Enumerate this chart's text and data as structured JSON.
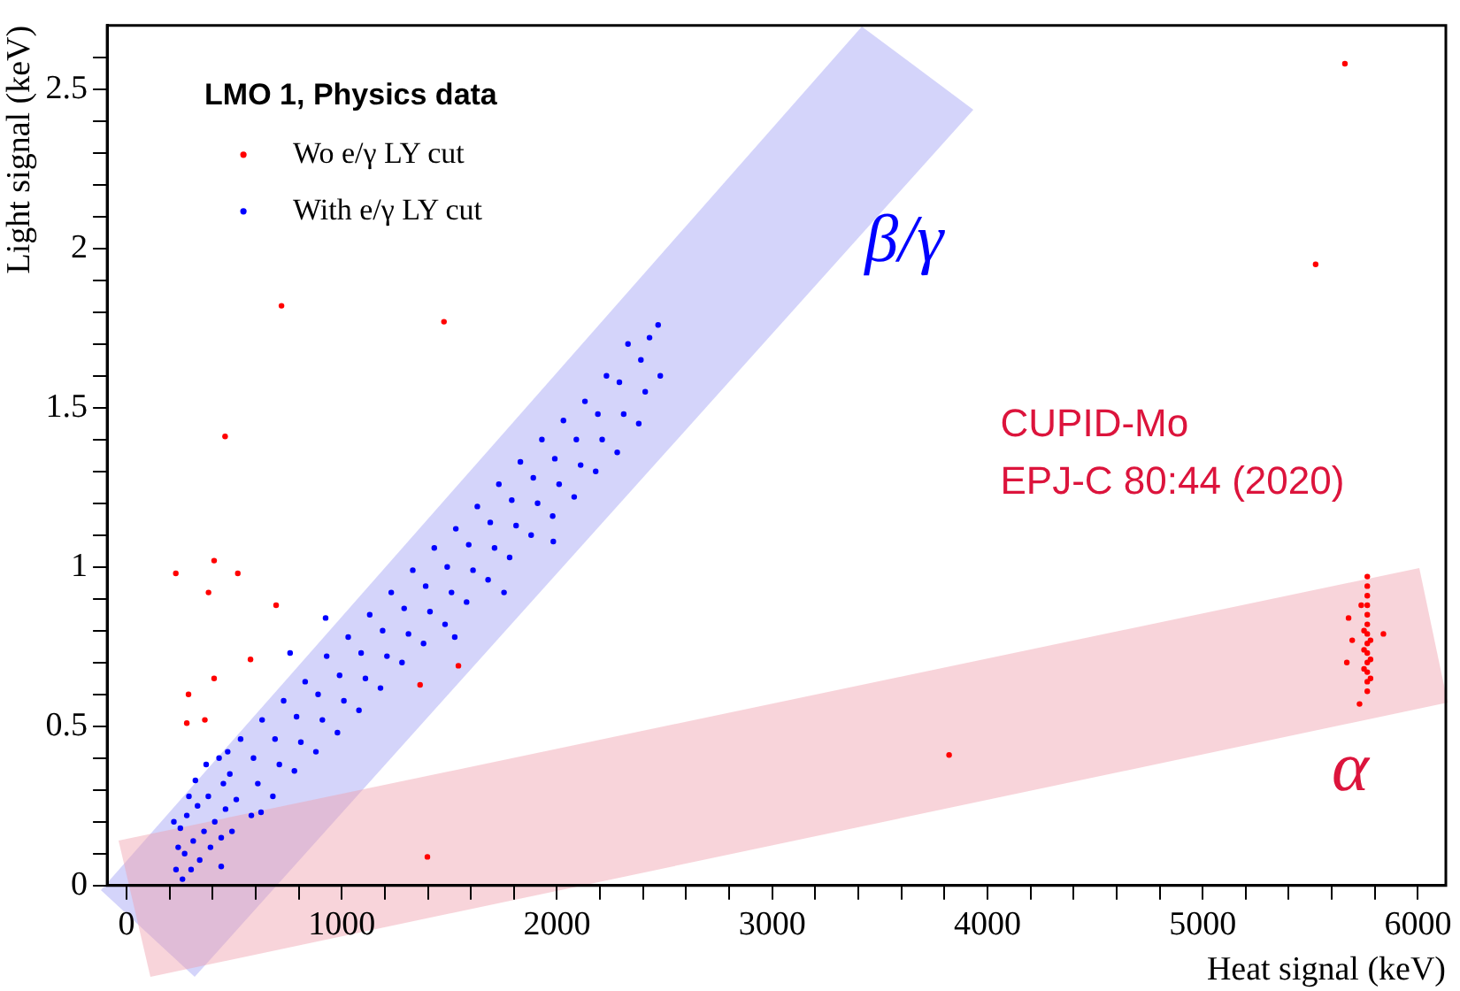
{
  "chart_data": {
    "type": "scatter",
    "xlabel": "Heat signal (keV)",
    "ylabel": "Light signal (keV)",
    "legend_title": "LMO 1, Physics data",
    "legend": "top left",
    "marker": "circle",
    "grid": false,
    "xlim": [
      -90,
      6130
    ],
    "ylim": [
      0,
      2.7
    ],
    "xticks": [
      0,
      {
        "value": 200,
        "label": null
      },
      {
        "value": 400,
        "label": null
      },
      {
        "value": 600,
        "label": null
      },
      {
        "value": 800,
        "label": null
      },
      1000,
      {
        "value": 1200,
        "label": null
      },
      {
        "value": 1400,
        "label": null
      },
      {
        "value": 1600,
        "label": null
      },
      {
        "value": 1800,
        "label": null
      },
      2000,
      {
        "value": 2200,
        "label": null
      },
      {
        "value": 2400,
        "label": null
      },
      {
        "value": 2600,
        "label": null
      },
      {
        "value": 2800,
        "label": null
      },
      3000,
      {
        "value": 3200,
        "label": null
      },
      {
        "value": 3400,
        "label": null
      },
      {
        "value": 3600,
        "label": null
      },
      {
        "value": 3800,
        "label": null
      },
      4000,
      {
        "value": 4200,
        "label": null
      },
      {
        "value": 4400,
        "label": null
      },
      {
        "value": 4600,
        "label": null
      },
      {
        "value": 4800,
        "label": null
      },
      5000,
      {
        "value": 5200,
        "label": null
      },
      {
        "value": 5400,
        "label": null
      },
      {
        "value": 5600,
        "label": null
      },
      {
        "value": 5800,
        "label": null
      },
      6000
    ],
    "yticks": [
      0,
      {
        "value": 0.1,
        "label": null
      },
      {
        "value": 0.2,
        "label": null
      },
      {
        "value": 0.3,
        "label": null
      },
      {
        "value": 0.4,
        "label": null
      },
      0.5,
      {
        "value": 0.6,
        "label": null
      },
      {
        "value": 0.7,
        "label": null
      },
      {
        "value": 0.8,
        "label": null
      },
      {
        "value": 0.9,
        "label": null
      },
      1,
      {
        "value": 1.1,
        "label": null
      },
      {
        "value": 1.2,
        "label": null
      },
      {
        "value": 1.3,
        "label": null
      },
      {
        "value": 1.4,
        "label": null
      },
      1.5,
      {
        "value": 1.6,
        "label": null
      },
      {
        "value": 1.7,
        "label": null
      },
      {
        "value": 1.8,
        "label": null
      },
      {
        "value": 1.9,
        "label": null
      },
      2,
      {
        "value": 2.1,
        "label": null
      },
      {
        "value": 2.2,
        "label": null
      },
      {
        "value": 2.3,
        "label": null
      },
      {
        "value": 2.4,
        "label": null
      },
      2.5,
      {
        "value": 2.6,
        "label": null
      }
    ],
    "annotations": [
      "β/γ",
      "CUPID-Mo",
      "EPJ-C 80:44 (2020)",
      "α"
    ],
    "series": [
      {
        "name": "Wo e/γ LY cut",
        "color": "#ff0000",
        "x": [
          5661,
          5525,
          720,
          1475,
          458,
          229,
          407,
          517,
          381,
          695,
          576,
          407,
          288,
          280,
          364,
          1364,
          1542,
          1398,
          3822,
          5678,
          5695,
          5670,
          5840,
          5737,
          5729,
          5765,
          5765,
          5765,
          5765,
          5765,
          5765,
          5765,
          5765,
          5765,
          5765,
          5765,
          5765,
          5765,
          5750,
          5750,
          5750,
          5780,
          5780,
          5780
        ],
        "values": [
          2.58,
          1.95,
          1.82,
          1.77,
          1.41,
          0.98,
          1.02,
          0.98,
          0.92,
          0.88,
          0.71,
          0.65,
          0.6,
          0.51,
          0.52,
          0.63,
          0.69,
          0.09,
          0.41,
          0.84,
          0.77,
          0.7,
          0.79,
          0.88,
          0.57,
          0.97,
          0.94,
          0.91,
          0.88,
          0.85,
          0.82,
          0.79,
          0.76,
          0.73,
          0.7,
          0.67,
          0.64,
          0.61,
          0.8,
          0.74,
          0.68,
          0.77,
          0.71,
          0.65
        ]
      },
      {
        "name": "With e/γ LY cut",
        "color": "#0000ff",
        "x": [
          230,
          240,
          220,
          260,
          270,
          250,
          290,
          300,
          310,
          280,
          320,
          340,
          360,
          330,
          370,
          390,
          410,
          380,
          430,
          440,
          460,
          450,
          470,
          490,
          510,
          480,
          530,
          580,
          610,
          590,
          630,
          680,
          710,
          690,
          730,
          780,
          810,
          790,
          830,
          880,
          910,
          890,
          930,
          980,
          1010,
          990,
          1030,
          1080,
          1110,
          1090,
          1130,
          1180,
          1210,
          1190,
          1230,
          1280,
          1310,
          1290,
          1330,
          1380,
          1410,
          1390,
          1430,
          1480,
          1510,
          1490,
          1530,
          1580,
          1610,
          1590,
          1630,
          1680,
          1710,
          1690,
          1730,
          1780,
          1810,
          1790,
          1830,
          1880,
          1910,
          1890,
          1930,
          1980,
          2010,
          1990,
          2030,
          2080,
          2110,
          2090,
          2130,
          2180,
          2210,
          2190,
          2230,
          2280,
          2310,
          2290,
          2330,
          2380,
          2410,
          2390,
          2430,
          2480,
          2470,
          760,
          925,
          1983,
          1754,
          1525,
          440,
          625
        ],
        "values": [
          0.05,
          0.12,
          0.2,
          0.02,
          0.1,
          0.18,
          0.28,
          0.05,
          0.14,
          0.22,
          0.33,
          0.08,
          0.17,
          0.25,
          0.38,
          0.12,
          0.2,
          0.28,
          0.4,
          0.15,
          0.24,
          0.32,
          0.42,
          0.17,
          0.27,
          0.35,
          0.46,
          0.22,
          0.32,
          0.4,
          0.52,
          0.28,
          0.38,
          0.46,
          0.58,
          0.36,
          0.45,
          0.53,
          0.64,
          0.42,
          0.52,
          0.6,
          0.72,
          0.48,
          0.58,
          0.66,
          0.78,
          0.55,
          0.65,
          0.73,
          0.85,
          0.62,
          0.72,
          0.8,
          0.92,
          0.7,
          0.79,
          0.87,
          0.99,
          0.76,
          0.86,
          0.94,
          1.06,
          0.82,
          0.92,
          1.0,
          1.12,
          0.89,
          0.99,
          1.07,
          1.19,
          0.96,
          1.06,
          1.14,
          1.26,
          1.03,
          1.13,
          1.21,
          1.33,
          1.1,
          1.2,
          1.28,
          1.4,
          1.16,
          1.26,
          1.34,
          1.46,
          1.22,
          1.32,
          1.4,
          1.52,
          1.3,
          1.4,
          1.48,
          1.6,
          1.36,
          1.48,
          1.58,
          1.7,
          1.45,
          1.55,
          1.65,
          1.72,
          1.6,
          1.76,
          0.73,
          0.84,
          1.08,
          0.92,
          0.78,
          0.06,
          0.23
        ]
      }
    ]
  }
}
